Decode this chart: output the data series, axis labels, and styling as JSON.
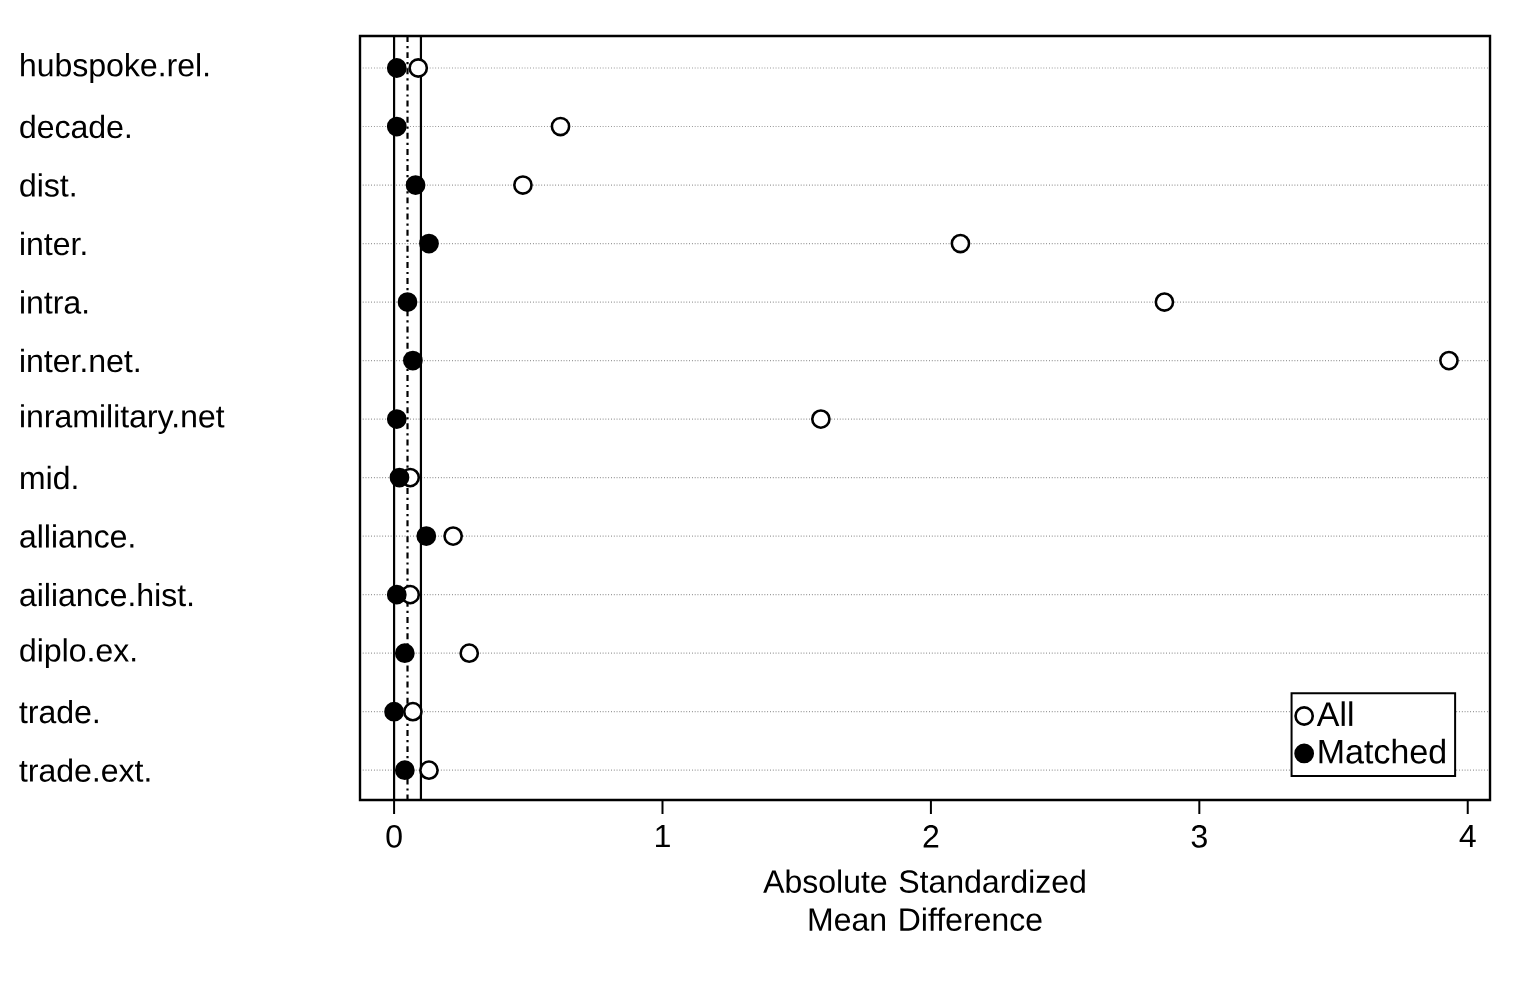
{
  "chart_data": {
    "type": "scatter",
    "xlabel": "Absolute Standardized Mean Difference",
    "categories": [
      "hubspoke.rel.",
      "decade.",
      "dist.",
      "inter.",
      "intra.",
      "inter.net.",
      "inramilitary.net",
      "mid.",
      "alliance.",
      "ailiance.hist.",
      "diplo.ex.",
      "trade.",
      "trade.ext."
    ],
    "orientation": "horizontal",
    "series": [
      {
        "name": "All",
        "color": "#000000",
        "values": [
          0.09,
          0.62,
          0.48,
          2.11,
          2.87,
          3.93,
          1.59,
          0.06,
          0.22,
          0.06,
          0.28,
          0.07,
          0.13
        ]
      },
      {
        "name": "Matched",
        "color": "#000000",
        "values": [
          0.01,
          0.01,
          0.08,
          0.13,
          0.05,
          0.07,
          0.01,
          0.02,
          0.12,
          0.01,
          0.04,
          0.0,
          0.04
        ]
      }
    ],
    "xlim": [
      -0.127,
      4.083
    ],
    "xticks": [
      0,
      1,
      2,
      3,
      4
    ],
    "ref_lines": [
      {
        "axis": "x",
        "value": 0,
        "line_style": "solid"
      },
      {
        "axis": "x",
        "value": 0.05,
        "line_style": "dashed"
      },
      {
        "axis": "x",
        "value": 0.1,
        "line_style": "solid"
      }
    ],
    "grid": "y",
    "legend": "bottom right",
    "marker": "circle"
  }
}
